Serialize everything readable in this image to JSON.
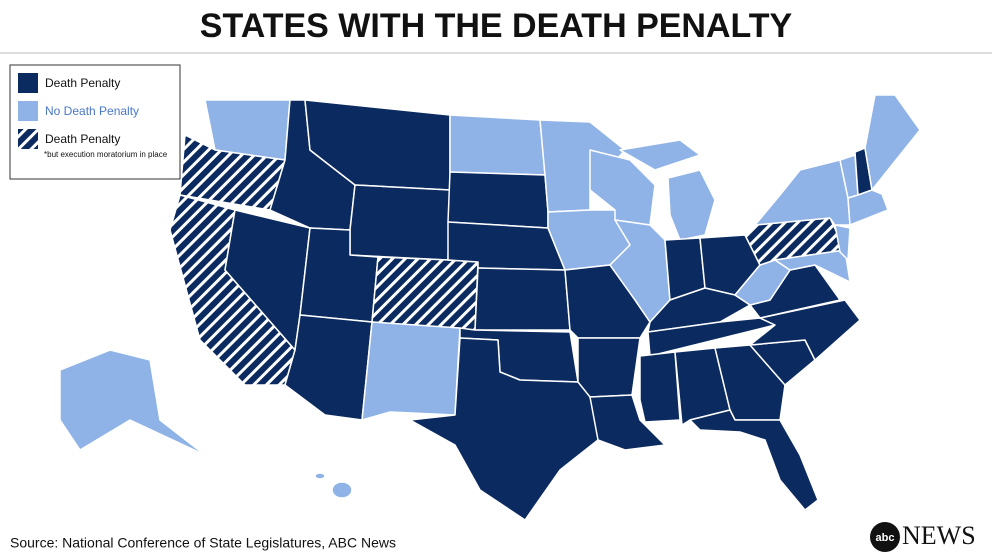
{
  "header": {
    "title": "STATES WITH THE DEATH PENALTY"
  },
  "legend": {
    "items": [
      {
        "label": "Death Penalty"
      },
      {
        "label": "No Death Penalty"
      },
      {
        "label": "Death Penalty",
        "note": "*but execution moratorium in place"
      }
    ]
  },
  "footer": {
    "source": "Source: National Conference of State Legislatures, ABC News",
    "logo_abc": "abc",
    "logo_news": "NEWS"
  }
}
